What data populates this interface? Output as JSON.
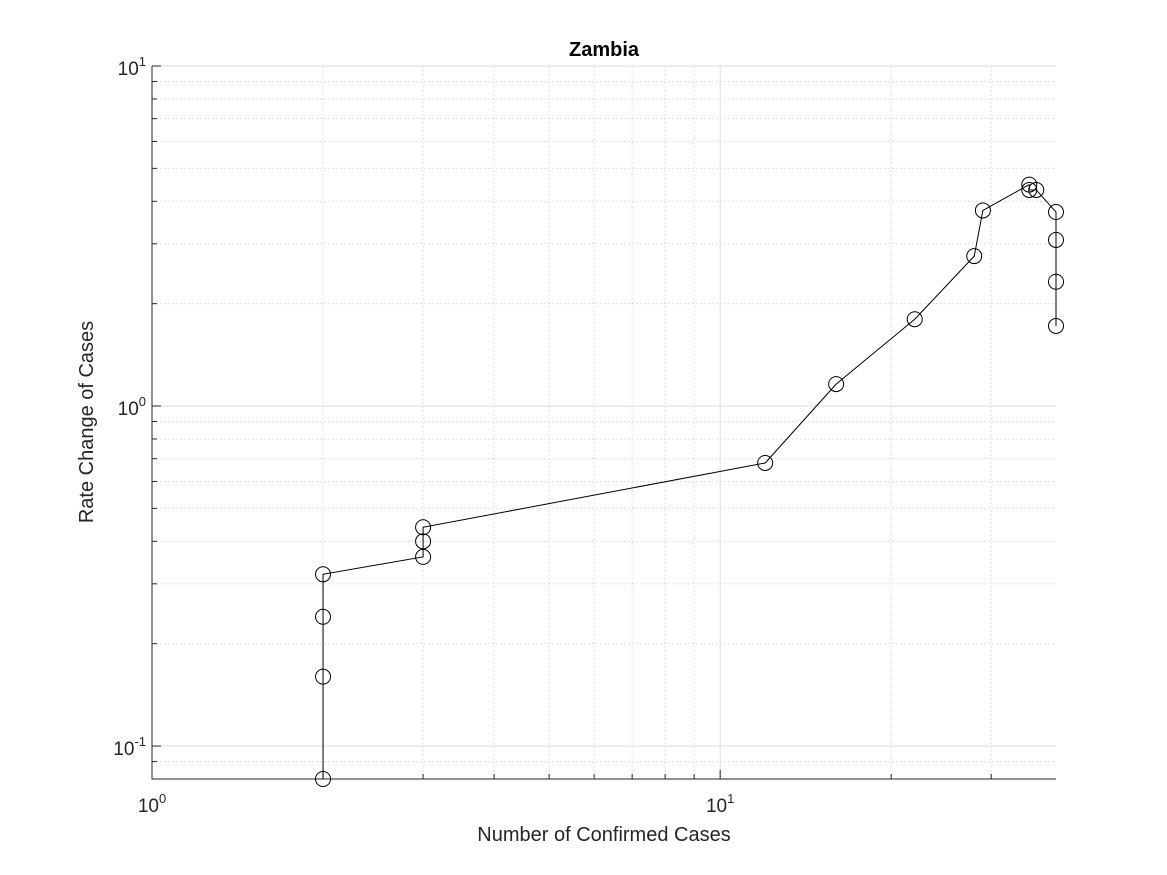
{
  "chart_data": {
    "type": "line",
    "title": "Zambia",
    "xlabel": "Number of Confirmed Cases",
    "ylabel": "Rate Change of Cases",
    "xscale": "log",
    "yscale": "log",
    "xlim": [
      1,
      39
    ],
    "ylim": [
      0.08,
      10
    ],
    "grid": true,
    "minor_grid": true,
    "x_ticks": [
      {
        "base": "10",
        "exp": "0",
        "value": 1
      },
      {
        "base": "10",
        "exp": "1",
        "value": 10
      }
    ],
    "y_ticks": [
      {
        "base": "10",
        "exp": "-1",
        "value": 0.1
      },
      {
        "base": "10",
        "exp": "0",
        "value": 1
      },
      {
        "base": "10",
        "exp": "1",
        "value": 10
      }
    ],
    "marker": "circle",
    "line_color": "#000000",
    "series": [
      {
        "x": [
          2,
          2,
          2,
          2,
          3,
          3,
          3,
          12,
          16,
          22,
          28,
          29,
          35,
          35,
          36,
          39,
          39,
          39,
          39
        ],
        "y": [
          0.08,
          0.16,
          0.24,
          0.32,
          0.36,
          0.4,
          0.44,
          0.68,
          1.16,
          1.8,
          2.76,
          3.76,
          4.48,
          4.32,
          4.32,
          3.72,
          3.08,
          2.32,
          1.72
        ]
      }
    ]
  }
}
